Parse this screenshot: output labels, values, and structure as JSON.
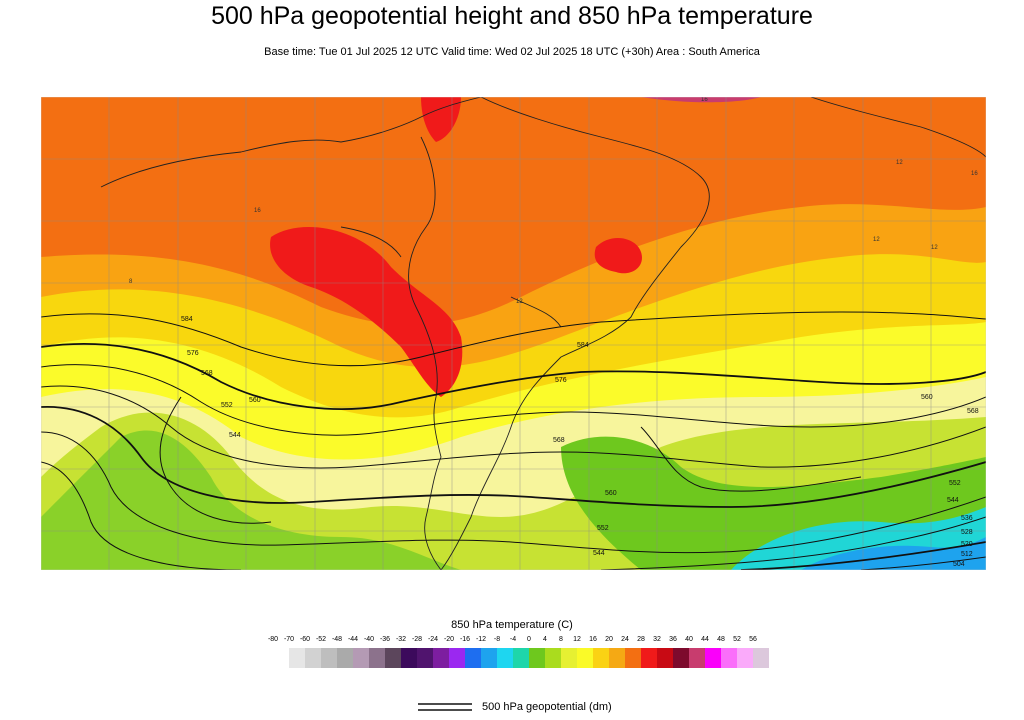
{
  "header": {
    "title": "500 hPa geopotential height and 850 hPa temperature",
    "subtitle": "Base time: Tue 01 Jul 2025 12 UTC Valid time: Wed 02 Jul 2025 18 UTC (+30h) Area : South America"
  },
  "map": {
    "contour_labels": [
      "584",
      "576",
      "568",
      "560",
      "552",
      "544",
      "584",
      "576",
      "568",
      "560",
      "552",
      "544",
      "536",
      "528",
      "520",
      "512",
      "504",
      "568",
      "560",
      "552",
      "544"
    ],
    "temp_labels": [
      "8",
      "16",
      "16",
      "12",
      "12",
      "12",
      "12",
      "16"
    ],
    "colors": {
      "very_hot": "#f01a1a",
      "hot": "#f36f12",
      "warm": "#f9a312",
      "mild": "#f8d70e",
      "cool": "#fbfb2a",
      "pale": "#f7f59c",
      "cold_green": "#c7e233",
      "colder_green": "#8ad129",
      "cyan": "#20d6d6",
      "blue": "#1ea3ee",
      "contour": "#111111",
      "coast": "#222222"
    }
  },
  "legend": {
    "title": "850 hPa temperature (C)",
    "labels": [
      "-80",
      "-70",
      "-60",
      "-52",
      "-48",
      "-44",
      "-40",
      "-36",
      "-32",
      "-28",
      "-24",
      "-20",
      "-16",
      "-12",
      "-8",
      "-4",
      "0",
      "4",
      "8",
      "12",
      "16",
      "20",
      "24",
      "28",
      "32",
      "36",
      "40",
      "44",
      "48",
      "52",
      "56"
    ],
    "colors": [
      "#e6e6e6",
      "#d2d2d2",
      "#bebebe",
      "#aaaaaa",
      "#b49ab4",
      "#8c728c",
      "#5c465c",
      "#3c0a5c",
      "#50146e",
      "#7d1ea0",
      "#9b28f0",
      "#1e6ef0",
      "#1ea3ee",
      "#1ed6f0",
      "#1ed6aa",
      "#6ec81e",
      "#aadc1e",
      "#e6f032",
      "#fafa28",
      "#fad214",
      "#f5a914",
      "#f36f12",
      "#f01a1a",
      "#c80a14",
      "#7d0a2d",
      "#c83c6e",
      "#fa00fa",
      "#fa6efa",
      "#faaafa",
      "#dcc8dc"
    ],
    "geopotential_label": "500 hPa geopotential (dm)"
  }
}
